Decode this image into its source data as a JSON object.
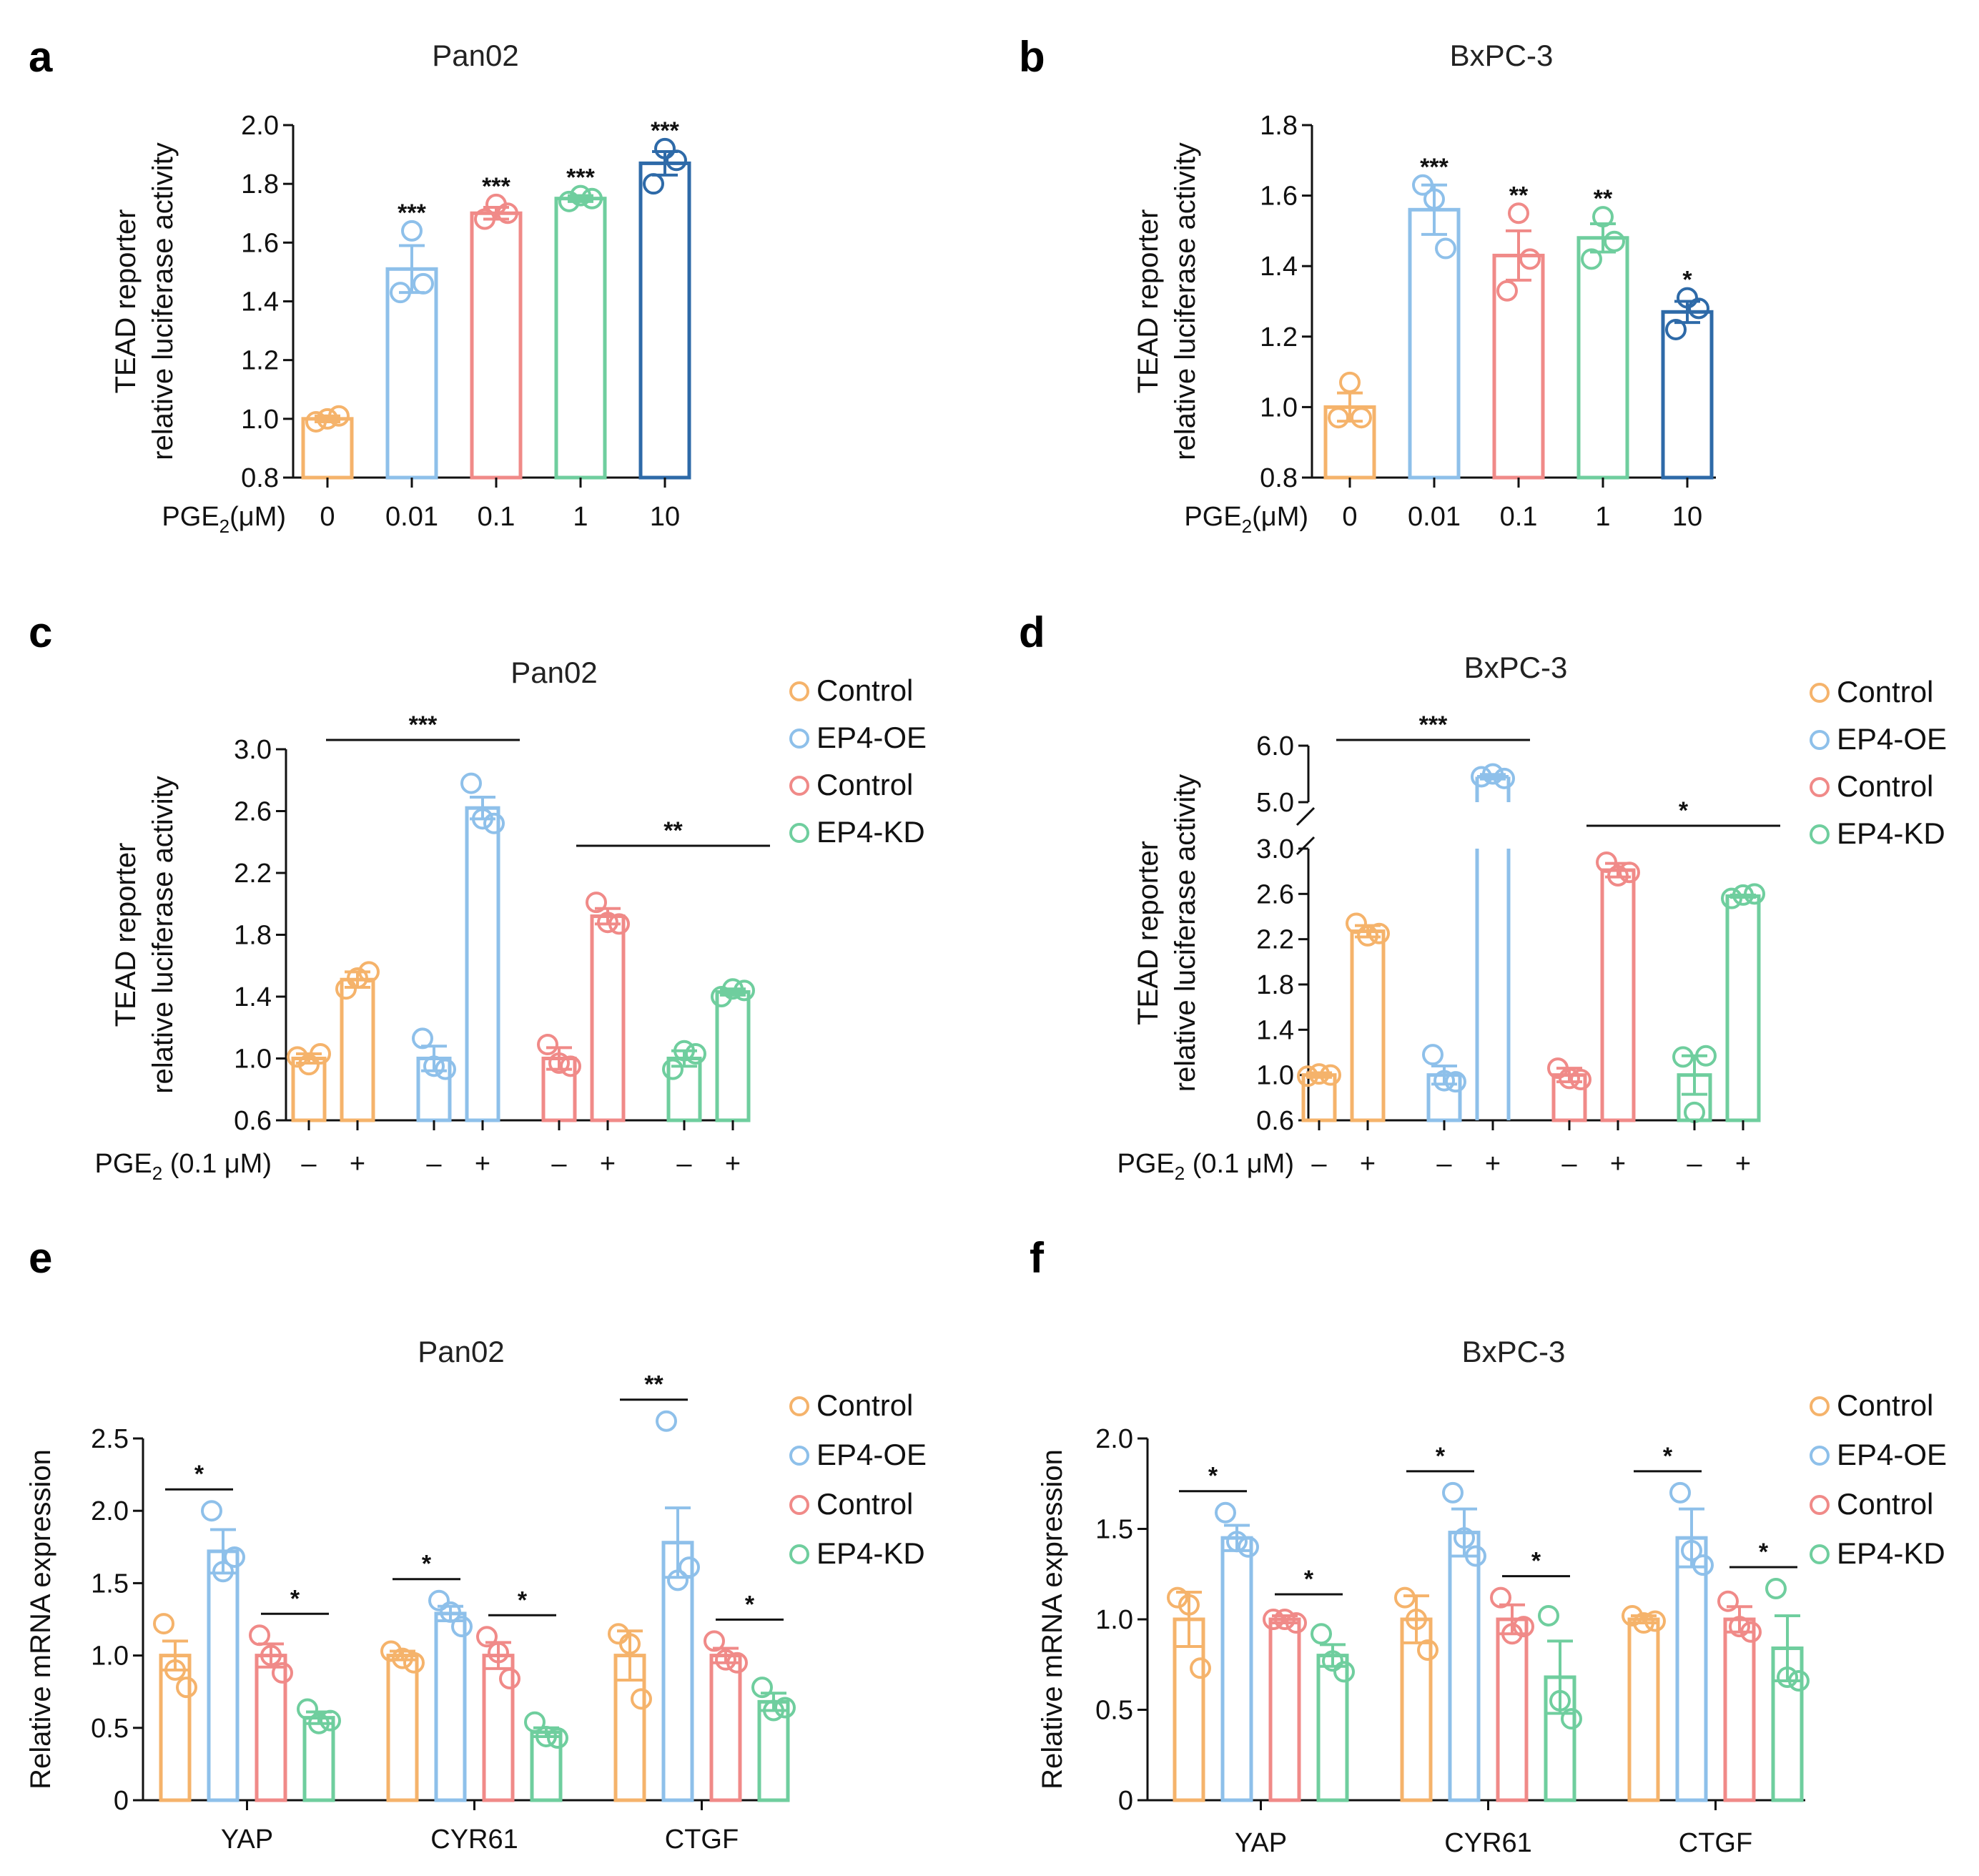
{
  "colors": {
    "orange": "#F5B36B",
    "blue": "#8EC0EA",
    "red": "#F08A88",
    "green": "#6FCE9E",
    "navy": "#2E6AA8"
  },
  "chart_data": [
    {
      "panel": "a",
      "type": "bar",
      "title": "Pan02",
      "ylabel": [
        "TEAD reporter",
        "relative luciferase activity"
      ],
      "xlabel_prefix": "PGE",
      "xlabel_sub": "2",
      "xlabel_suffix": "(μM)",
      "categories": [
        "0",
        "0.01",
        "0.1",
        "1",
        "10"
      ],
      "values": [
        1.0,
        1.51,
        1.7,
        1.75,
        1.87
      ],
      "errors": [
        0.01,
        0.08,
        0.02,
        0.01,
        0.04
      ],
      "points": [
        [
          0.99,
          1.0,
          1.01
        ],
        [
          1.43,
          1.64,
          1.46
        ],
        [
          1.68,
          1.73,
          1.7
        ],
        [
          1.74,
          1.76,
          1.75
        ],
        [
          1.8,
          1.92,
          1.88
        ]
      ],
      "colors": [
        "orange",
        "blue",
        "red",
        "green",
        "navy"
      ],
      "significance": [
        "",
        "***",
        "***",
        "***",
        "***"
      ],
      "ylim": [
        0.8,
        2.0
      ],
      "yticks": [
        "0.8",
        "1.0",
        "1.2",
        "1.4",
        "1.6",
        "1.8",
        "2.0"
      ]
    },
    {
      "panel": "b",
      "type": "bar",
      "title": "BxPC-3",
      "ylabel": [
        "TEAD reporter",
        "relative luciferase activity"
      ],
      "xlabel_prefix": "PGE",
      "xlabel_sub": "2",
      "xlabel_suffix": "(μM)",
      "categories": [
        "0",
        "0.01",
        "0.1",
        "1",
        "10"
      ],
      "values": [
        1.0,
        1.56,
        1.43,
        1.48,
        1.27
      ],
      "errors": [
        0.04,
        0.07,
        0.07,
        0.04,
        0.03
      ],
      "points": [
        [
          0.97,
          1.07,
          0.97
        ],
        [
          1.63,
          1.59,
          1.45
        ],
        [
          1.33,
          1.55,
          1.42
        ],
        [
          1.42,
          1.54,
          1.47
        ],
        [
          1.22,
          1.31,
          1.28
        ]
      ],
      "colors": [
        "orange",
        "blue",
        "red",
        "green",
        "navy"
      ],
      "significance": [
        "",
        "***",
        "**",
        "**",
        "*"
      ],
      "ylim": [
        0.8,
        1.8
      ],
      "yticks": [
        "0.8",
        "1.0",
        "1.2",
        "1.4",
        "1.6",
        "1.8"
      ]
    },
    {
      "panel": "c",
      "type": "bar",
      "title": "Pan02",
      "ylabel": [
        "TEAD reporter",
        "relative luciferase activity"
      ],
      "xlabel_prefix": "PGE",
      "xlabel_sub": "2",
      "xlabel_suffix": " (0.1 μM)",
      "categories": [
        "–",
        "+",
        "–",
        "+",
        "–",
        "+",
        "–",
        "+"
      ],
      "values": [
        1.0,
        1.51,
        1.0,
        2.62,
        1.0,
        1.92,
        1.0,
        1.43
      ],
      "errors": [
        0.03,
        0.05,
        0.08,
        0.07,
        0.07,
        0.05,
        0.05,
        0.02
      ],
      "points": [
        [
          1.01,
          0.96,
          1.03
        ],
        [
          1.45,
          1.52,
          1.56
        ],
        [
          1.13,
          0.95,
          0.93
        ],
        [
          2.78,
          2.55,
          2.52
        ],
        [
          1.09,
          0.97,
          0.95
        ],
        [
          2.01,
          1.88,
          1.87
        ],
        [
          0.93,
          1.05,
          1.03
        ],
        [
          1.4,
          1.45,
          1.44
        ]
      ],
      "colors": [
        "orange",
        "orange",
        "blue",
        "blue",
        "red",
        "red",
        "green",
        "green"
      ],
      "legend": [
        {
          "label": "Control",
          "color": "orange"
        },
        {
          "label": "EP4-OE",
          "color": "blue"
        },
        {
          "label": "Control",
          "color": "red"
        },
        {
          "label": "EP4-KD",
          "color": "green"
        }
      ],
      "brackets": [
        {
          "from": 1,
          "to": 3,
          "text": "***"
        },
        {
          "from": 5,
          "to": 7,
          "text": "**"
        }
      ],
      "ylim": [
        0.6,
        3.0
      ],
      "yticks": [
        "0.6",
        "1.0",
        "1.4",
        "1.8",
        "2.2",
        "2.6",
        "3.0"
      ]
    },
    {
      "panel": "d",
      "type": "bar",
      "title": "BxPC-3",
      "ylabel": [
        "TEAD reporter",
        "relative luciferase activity"
      ],
      "xlabel_prefix": "PGE",
      "xlabel_sub": "2",
      "xlabel_suffix": " (0.1 μM)",
      "categories": [
        "–",
        "+",
        "–",
        "+",
        "–",
        "+",
        "–",
        "+"
      ],
      "values": [
        1.0,
        2.27,
        1.0,
        5.45,
        1.0,
        2.81,
        1.0,
        2.58
      ],
      "errors": [
        0.02,
        0.05,
        0.08,
        0.04,
        0.06,
        0.06,
        0.17,
        0.01
      ],
      "points": [
        [
          0.99,
          1.01,
          1.0
        ],
        [
          2.34,
          2.23,
          2.25
        ],
        [
          1.18,
          0.95,
          0.94
        ],
        [
          5.45,
          5.5,
          5.42
        ],
        [
          1.06,
          0.97,
          0.96
        ],
        [
          2.88,
          2.76,
          2.79
        ],
        [
          1.16,
          0.67,
          1.17
        ],
        [
          2.56,
          2.59,
          2.6
        ]
      ],
      "colors": [
        "orange",
        "orange",
        "blue",
        "blue",
        "red",
        "red",
        "green",
        "green"
      ],
      "legend": [
        {
          "label": "Control",
          "color": "orange"
        },
        {
          "label": "EP4-OE",
          "color": "blue"
        },
        {
          "label": "Control",
          "color": "red"
        },
        {
          "label": "EP4-KD",
          "color": "green"
        }
      ],
      "brackets": [
        {
          "from": 1,
          "to": 3,
          "text": "***"
        },
        {
          "from": 5,
          "to": 7,
          "text": "*"
        }
      ],
      "ylim_lower": [
        0.6,
        3.0
      ],
      "ylim_upper": [
        5.0,
        6.0
      ],
      "yticks": [
        "0.6",
        "1.0",
        "1.4",
        "1.8",
        "2.2",
        "2.6",
        "3.0"
      ],
      "yticks_upper": [
        "5.0",
        "6.0"
      ]
    },
    {
      "panel": "e",
      "type": "bar",
      "title": "Pan02",
      "ylabel": [
        "Relative mRNA expression"
      ],
      "groups": [
        "YAP",
        "CYR61",
        "CTGF"
      ],
      "series": [
        {
          "name": "Control",
          "color": "orange",
          "values": [
            1.0,
            1.0,
            1.0
          ],
          "errors": [
            0.1,
            0.03,
            0.17
          ],
          "points": [
            [
              1.22,
              0.9,
              0.78
            ],
            [
              1.03,
              0.98,
              0.95
            ],
            [
              1.15,
              1.08,
              0.7
            ]
          ]
        },
        {
          "name": "EP4-OE",
          "color": "blue",
          "values": [
            1.72,
            1.29,
            1.78
          ],
          "errors": [
            0.15,
            0.05,
            0.24
          ],
          "points": [
            [
              2.0,
              1.58,
              1.68
            ],
            [
              1.38,
              1.3,
              1.2
            ],
            [
              2.62,
              1.52,
              1.61
            ]
          ]
        },
        {
          "name": "Control",
          "color": "red",
          "values": [
            1.0,
            1.0,
            1.0
          ],
          "errors": [
            0.08,
            0.09,
            0.05
          ],
          "points": [
            [
              1.14,
              1.0,
              0.88
            ],
            [
              1.13,
              1.02,
              0.84
            ],
            [
              1.1,
              0.97,
              0.95
            ]
          ]
        },
        {
          "name": "EP4-KD",
          "color": "green",
          "values": [
            0.57,
            0.47,
            0.68
          ],
          "errors": [
            0.04,
            0.03,
            0.06
          ],
          "points": [
            [
              0.63,
              0.53,
              0.55
            ],
            [
              0.54,
              0.44,
              0.43
            ],
            [
              0.78,
              0.62,
              0.64
            ]
          ]
        }
      ],
      "brackets": [
        {
          "group": 0,
          "pair": [
            0,
            1
          ],
          "text": "*"
        },
        {
          "group": 0,
          "pair": [
            2,
            3
          ],
          "text": "*"
        },
        {
          "group": 1,
          "pair": [
            0,
            1
          ],
          "text": "*"
        },
        {
          "group": 1,
          "pair": [
            2,
            3
          ],
          "text": "*"
        },
        {
          "group": 2,
          "pair": [
            0,
            1
          ],
          "text": "**"
        },
        {
          "group": 2,
          "pair": [
            2,
            3
          ],
          "text": "*"
        }
      ],
      "ylim": [
        0,
        2.5
      ],
      "yticks": [
        "0",
        "0.5",
        "1.0",
        "1.5",
        "2.0",
        "2.5"
      ]
    },
    {
      "panel": "f",
      "type": "bar",
      "title": "BxPC-3",
      "ylabel": [
        "Relative mRNA expression"
      ],
      "groups": [
        "YAP",
        "CYR61",
        "CTGF"
      ],
      "series": [
        {
          "name": "Control",
          "color": "orange",
          "values": [
            1.0,
            1.0,
            1.0
          ],
          "errors": [
            0.15,
            0.13,
            0.02
          ],
          "points": [
            [
              1.12,
              1.08,
              0.73
            ],
            [
              1.12,
              1.0,
              0.83
            ],
            [
              1.02,
              0.98,
              0.99
            ]
          ]
        },
        {
          "name": "EP4-OE",
          "color": "blue",
          "values": [
            1.45,
            1.48,
            1.45
          ],
          "errors": [
            0.07,
            0.13,
            0.16
          ],
          "points": [
            [
              1.59,
              1.43,
              1.4
            ],
            [
              1.7,
              1.45,
              1.35
            ],
            [
              1.7,
              1.38,
              1.3
            ]
          ]
        },
        {
          "name": "Control",
          "color": "red",
          "values": [
            1.0,
            1.0,
            1.0
          ],
          "errors": [
            0.02,
            0.08,
            0.07
          ],
          "points": [
            [
              1.0,
              1.0,
              0.98
            ],
            [
              1.12,
              0.92,
              0.96
            ],
            [
              1.1,
              0.96,
              0.93
            ]
          ]
        },
        {
          "name": "EP4-KD",
          "color": "green",
          "values": [
            0.8,
            0.68,
            0.84
          ],
          "errors": [
            0.06,
            0.2,
            0.18
          ],
          "points": [
            [
              0.92,
              0.77,
              0.71
            ],
            [
              1.02,
              0.55,
              0.45
            ],
            [
              1.17,
              0.68,
              0.66
            ]
          ]
        }
      ],
      "brackets": [
        {
          "group": 0,
          "pair": [
            0,
            1
          ],
          "text": "*"
        },
        {
          "group": 0,
          "pair": [
            2,
            3
          ],
          "text": "*"
        },
        {
          "group": 1,
          "pair": [
            0,
            1
          ],
          "text": "*"
        },
        {
          "group": 1,
          "pair": [
            2,
            3
          ],
          "text": "*"
        },
        {
          "group": 2,
          "pair": [
            0,
            1
          ],
          "text": "*"
        },
        {
          "group": 2,
          "pair": [
            2,
            3
          ],
          "text": "*"
        }
      ],
      "ylim": [
        0,
        2.0
      ],
      "yticks": [
        "0",
        "0.5",
        "1.0",
        "1.5",
        "2.0"
      ]
    }
  ]
}
